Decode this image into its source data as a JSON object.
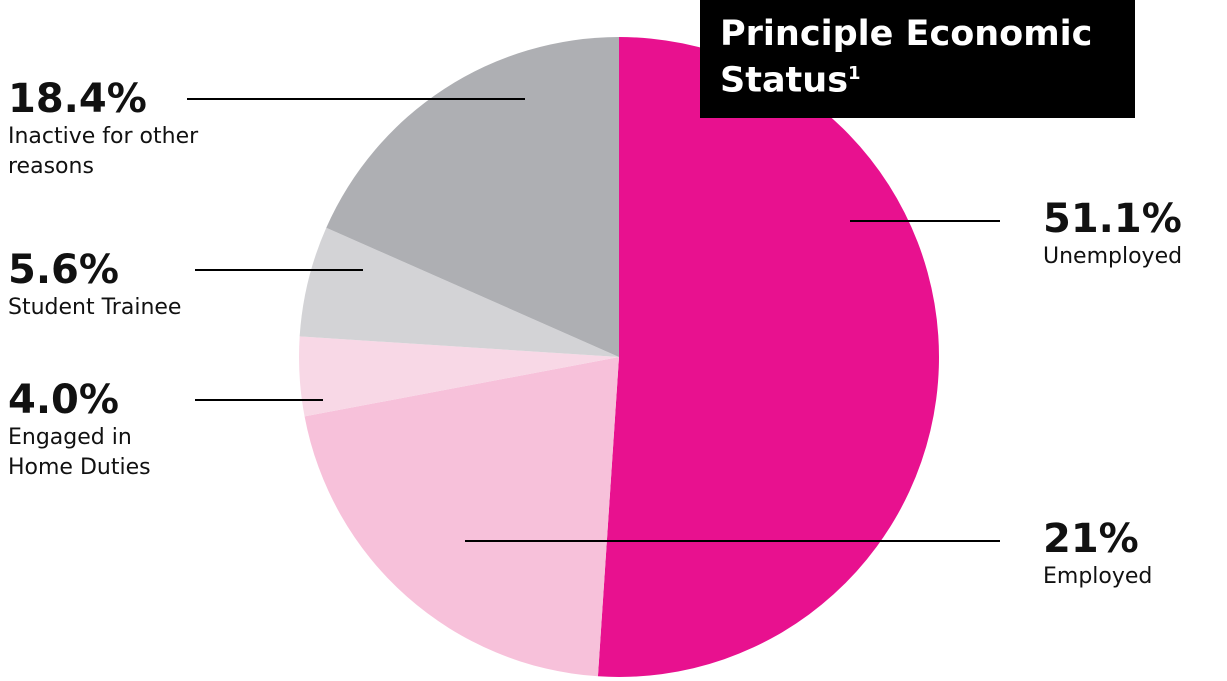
{
  "chart_data": {
    "type": "pie",
    "title": "Principle Economic Status",
    "title_note": "1",
    "categories": [
      "Unemployed",
      "Employed",
      "Engaged in Home Duties",
      "Student Trainee",
      "Inactive for other reasons"
    ],
    "values": [
      51.1,
      21,
      4.0,
      5.6,
      18.4
    ],
    "value_labels": [
      "51.1%",
      "21%",
      "4.0%",
      "5.6%",
      "18.4%"
    ],
    "colors": [
      "#e8118f",
      "#f7c1da",
      "#f8d8e6",
      "#d3d3d6",
      "#aeafb3"
    ]
  }
}
